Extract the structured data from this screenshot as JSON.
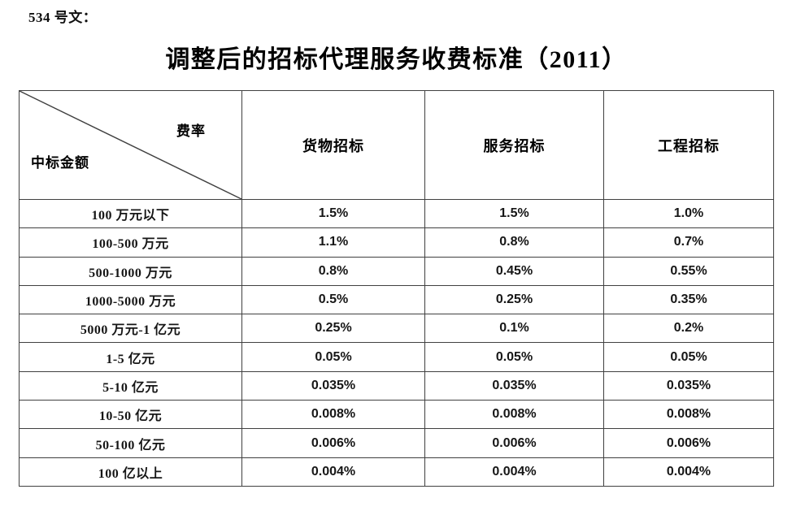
{
  "doc": {
    "ref_label": "534 号文：",
    "title": "调整后的招标代理服务收费标准（2011）"
  },
  "table": {
    "corner": {
      "top_right": "费率",
      "bottom_left": "中标金额"
    },
    "columns": [
      "货物招标",
      "服务招标",
      "工程招标"
    ],
    "rows": [
      {
        "label": "100 万元以下",
        "values": [
          "1.5%",
          "1.5%",
          "1.0%"
        ]
      },
      {
        "label": "100-500 万元",
        "values": [
          "1.1%",
          "0.8%",
          "0.7%"
        ]
      },
      {
        "label": "500-1000 万元",
        "values": [
          "0.8%",
          "0.45%",
          "0.55%"
        ]
      },
      {
        "label": "1000-5000 万元",
        "values": [
          "0.5%",
          "0.25%",
          "0.35%"
        ]
      },
      {
        "label": "5000 万元-1 亿元",
        "values": [
          "0.25%",
          "0.1%",
          "0.2%"
        ]
      },
      {
        "label": "1-5 亿元",
        "values": [
          "0.05%",
          "0.05%",
          "0.05%"
        ]
      },
      {
        "label": "5-10 亿元",
        "values": [
          "0.035%",
          "0.035%",
          "0.035%"
        ]
      },
      {
        "label": "10-50 亿元",
        "values": [
          "0.008%",
          "0.008%",
          "0.008%"
        ]
      },
      {
        "label": "50-100 亿元",
        "values": [
          "0.006%",
          "0.006%",
          "0.006%"
        ]
      },
      {
        "label": "100 亿以上",
        "values": [
          "0.004%",
          "0.004%",
          "0.004%"
        ]
      }
    ]
  },
  "colors": {
    "text": "#101010",
    "border": "#404040",
    "background": "#ffffff"
  }
}
